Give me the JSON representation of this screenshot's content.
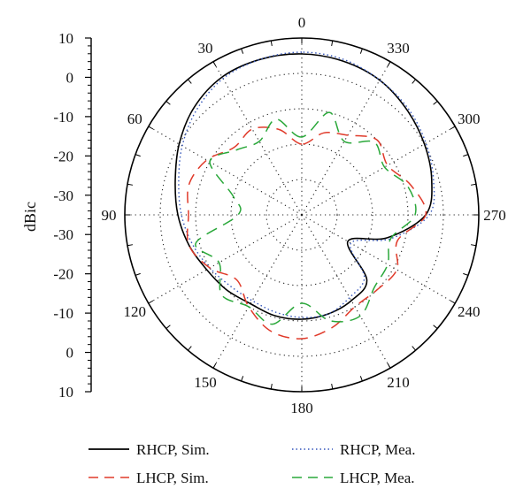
{
  "chart_data": {
    "type": "polar-line",
    "ylabel": "dBic",
    "radial_range": [
      -40,
      10
    ],
    "radial_ticks": [
      10,
      0,
      -10,
      -20,
      -30
    ],
    "axis_tick_labels": [
      "10",
      "0",
      "-10",
      "-20",
      "-30",
      "-30",
      "-20",
      "-10",
      "0",
      "10"
    ],
    "angle_labels": [
      "0",
      "30",
      "60",
      "90",
      "120",
      "150",
      "180",
      "210",
      "240",
      "270",
      "300",
      "330"
    ],
    "angle_direction": "counterclockwise",
    "grid": true,
    "legend": {
      "position": "bottom",
      "entries": [
        "RHCP, Sim.",
        "RHCP, Mea.",
        "LHCP, Sim.",
        "LHCP, Mea."
      ]
    },
    "series": [
      {
        "name": "RHCP, Sim.",
        "color": "#000000",
        "style": "solid",
        "angles": [
          0,
          15,
          30,
          45,
          60,
          75,
          90,
          105,
          120,
          135,
          150,
          165,
          180,
          195,
          210,
          225,
          240,
          255,
          270,
          285,
          300,
          315,
          330,
          345
        ],
        "values": [
          5.5,
          5.5,
          5,
          3,
          0,
          -3,
          -5,
          -7,
          -9,
          -10,
          -11,
          -10.5,
          -10.5,
          -11,
          -12,
          -14,
          -25,
          -15,
          -5,
          -2,
          0,
          2,
          4,
          5
        ]
      },
      {
        "name": "RHCP, Mea.",
        "color": "#3355bb",
        "style": "dotted",
        "angles": [
          0,
          15,
          30,
          45,
          60,
          75,
          90,
          105,
          120,
          135,
          150,
          165,
          180,
          195,
          210,
          225,
          240,
          255,
          270,
          285,
          300,
          315,
          330,
          345
        ],
        "values": [
          6,
          5.5,
          4.5,
          2,
          -1,
          -4,
          -6,
          -8,
          -10,
          -11.5,
          -12,
          -11.5,
          -11,
          -11,
          -13,
          -15,
          -24,
          -14,
          -4,
          -1.5,
          0.5,
          2.5,
          4,
          5.5
        ]
      },
      {
        "name": "LHCP, Sim.",
        "color": "#e03a2a",
        "style": "dashed",
        "angles": [
          0,
          15,
          30,
          45,
          60,
          75,
          90,
          105,
          120,
          135,
          150,
          165,
          180,
          195,
          210,
          225,
          240,
          255,
          270,
          285,
          300,
          315,
          330,
          345
        ],
        "values": [
          -20,
          -15,
          -12,
          -13,
          -9,
          -7,
          -8,
          -7,
          -10,
          -14,
          -10,
          -6,
          -5,
          -7,
          -10,
          -10,
          -9,
          -12,
          -5,
          -8,
          -12,
          -10,
          -14,
          -16
        ]
      },
      {
        "name": "LHCP, Mea.",
        "color": "#2aa83a",
        "style": "dashed",
        "angles": [
          0,
          15,
          30,
          45,
          60,
          75,
          90,
          105,
          120,
          135,
          150,
          165,
          180,
          195,
          210,
          225,
          240,
          255,
          270,
          285,
          300,
          315,
          330,
          345
        ],
        "values": [
          -18,
          -12,
          -16,
          -14,
          -10,
          -20,
          -22,
          -9,
          -13,
          -8,
          -10,
          -8,
          -15,
          -9,
          -7,
          -11,
          -12,
          -14,
          -8,
          -9,
          -13,
          -11,
          -16,
          -10
        ]
      }
    ]
  }
}
